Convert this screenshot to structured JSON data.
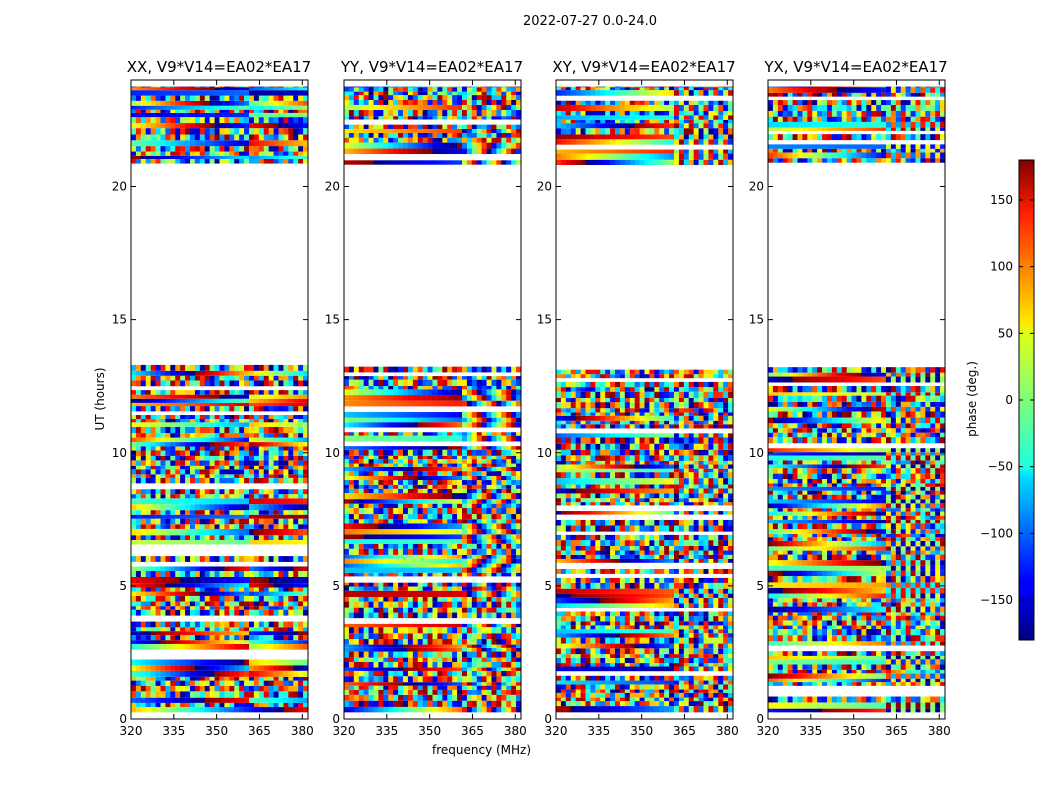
{
  "chart_data": {
    "type": "heatmap",
    "title": "2022-07-27 0.0-24.0",
    "xlabel": "frequency (MHz)",
    "ylabel": "UT (hours)",
    "colorbar_label": "phase (deg.)",
    "xlim": [
      320,
      382
    ],
    "ylim": [
      0,
      24
    ],
    "x_ticks": [
      320,
      335,
      350,
      365,
      380
    ],
    "y_ticks": [
      0,
      5,
      10,
      15,
      20
    ],
    "colorbar_range": [
      -180,
      180
    ],
    "colorbar_ticks": [
      -150,
      -100,
      -50,
      0,
      50,
      100,
      150
    ],
    "colorbar_tick_labels": [
      "−150",
      "−100",
      "−50",
      "0",
      "50",
      "100",
      "150"
    ],
    "data_gap_hours": [
      13.1,
      20.7
    ],
    "panels": [
      {
        "name": "XX",
        "title": "XX, V9*V14=EA02*EA17"
      },
      {
        "name": "YY",
        "title": "YY, V9*V14=EA02*EA17"
      },
      {
        "name": "XY",
        "title": "XY, V9*V14=EA02*EA17"
      },
      {
        "name": "YX",
        "title": "YX, V9*V14=EA02*EA17"
      }
    ]
  }
}
